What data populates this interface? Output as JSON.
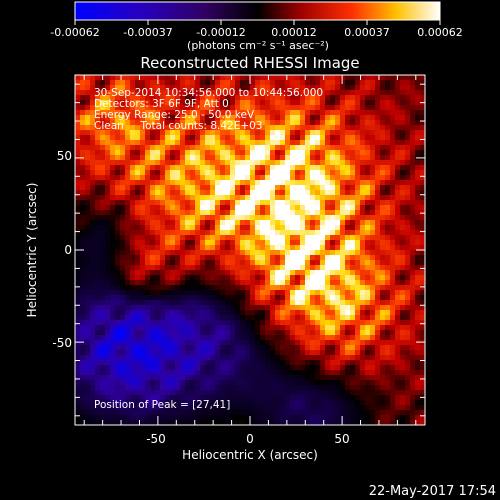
{
  "colorbar": {
    "ticks": [
      "-0.00062",
      "-0.00037",
      "-0.00012",
      "0.00012",
      "0.00037",
      "0.00062"
    ],
    "unit_label": "(photons cm⁻² s⁻¹ asec⁻²)"
  },
  "image": {
    "title": "Reconstructed RHESSI Image",
    "info_lines": [
      "30-Sep-2014 10:34:56.000 to 10:44:56.000",
      "Detectors: 3F 6F 9F, Att 0",
      "Energy Range: 25.0 - 50.0 keV",
      "Clean     Total counts: 8.42E+03"
    ],
    "peak_label": "Position of Peak = [27,41]"
  },
  "axes": {
    "xlabel": "Heliocentric X (arcsec)",
    "ylabel": "Heliocentric Y (arcsec)",
    "xticks": [
      "-50",
      "0",
      "50"
    ],
    "yticks": [
      "50",
      "0",
      "-50"
    ],
    "x_range": [
      -95,
      95
    ],
    "y_range": [
      -95,
      95
    ]
  },
  "footer": {
    "timestamp": "22-May-2017 17:54"
  },
  "colors": {
    "background": "#000000",
    "text": "#ffffff",
    "colormap": [
      "#0000ff",
      "#3000a0",
      "#000000",
      "#c00000",
      "#ff4000",
      "#ffd800",
      "#ffffff"
    ]
  }
}
